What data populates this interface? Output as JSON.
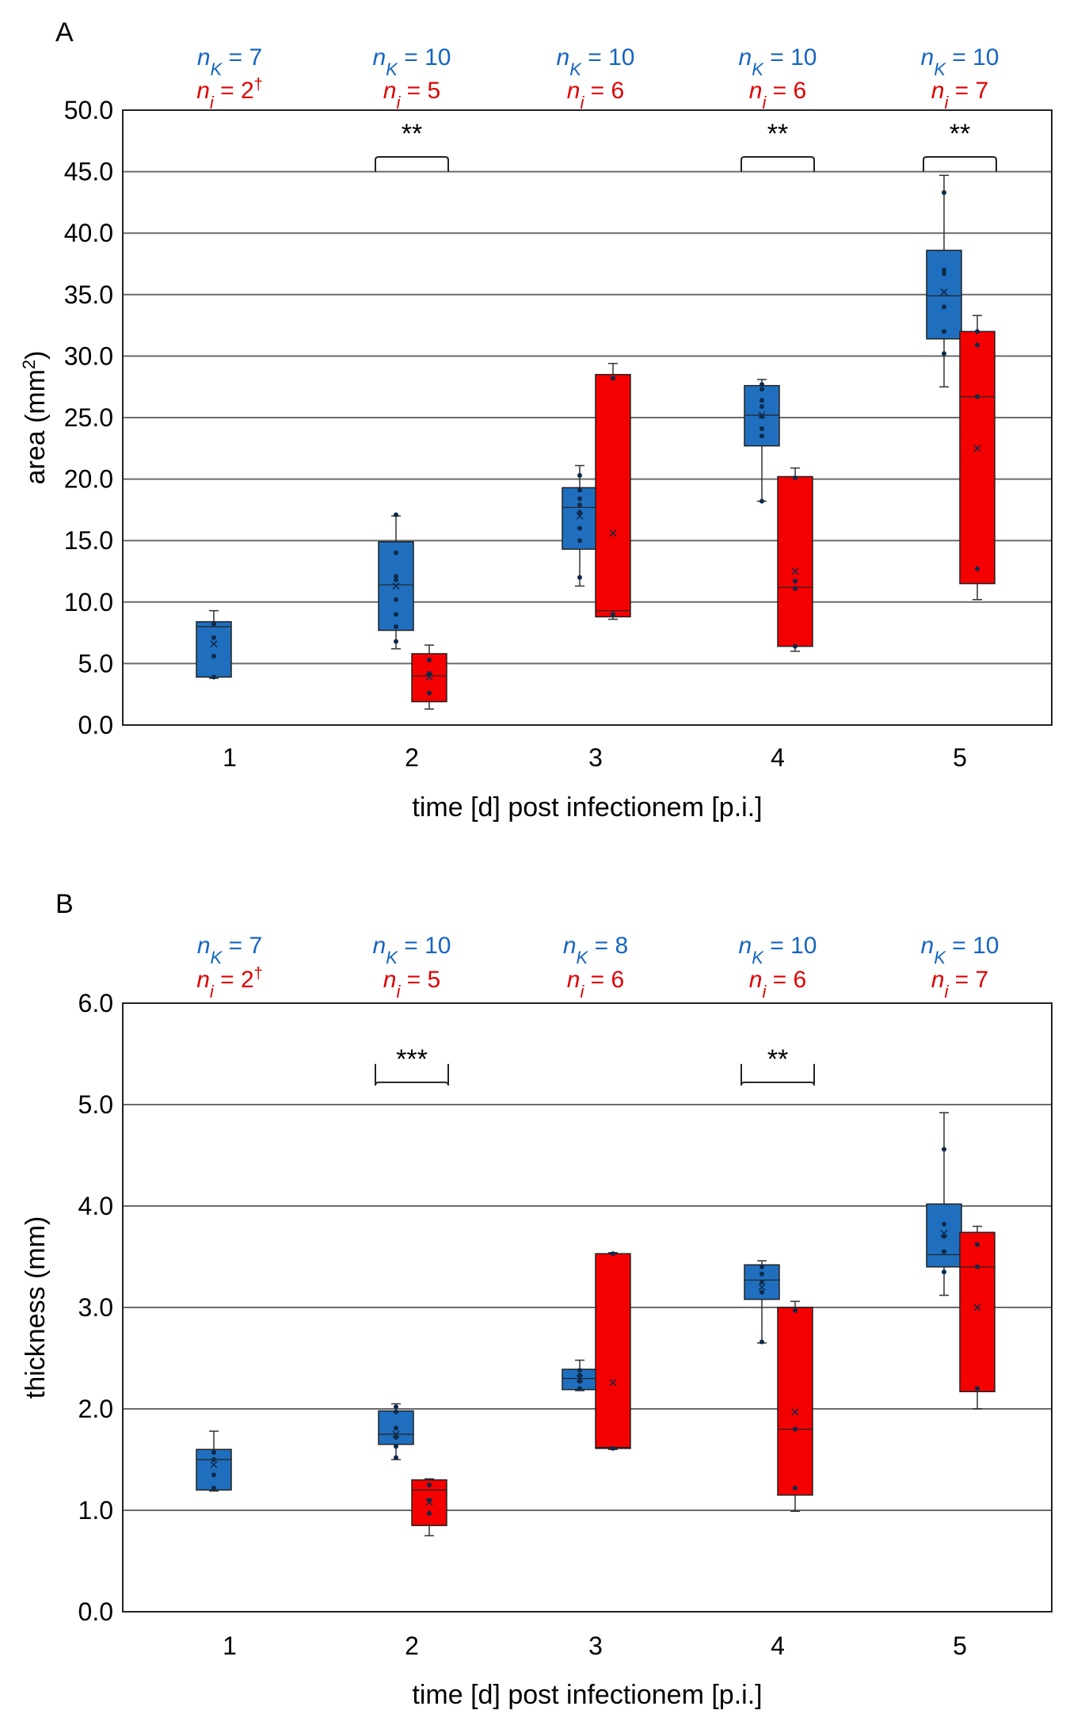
{
  "chart_data": [
    {
      "panel": "A",
      "type": "box",
      "ylabel_main": "area (mm",
      "ylabel_sup": "2",
      "ylabel_end": ")",
      "xlabel": "time [d] post infectionem [p.i.]",
      "ylim": [
        0,
        50
      ],
      "yticks": [
        0,
        5,
        10,
        15,
        20,
        25,
        30,
        35,
        40,
        45,
        50
      ],
      "ytick_labels": [
        "0.0",
        "5.0",
        "10.0",
        "15.0",
        "20.0",
        "25.0",
        "30.0",
        "35.0",
        "40.0",
        "45.0",
        "50.0"
      ],
      "categories": [
        "1",
        "2",
        "3",
        "4",
        "5"
      ],
      "nK": [
        "7",
        "10",
        "10",
        "10",
        "10"
      ],
      "ni": [
        "2",
        "5",
        "6",
        "6",
        "7"
      ],
      "ni_dagger": [
        "†",
        "",
        "",
        "",
        ""
      ],
      "significance": [
        "",
        "**",
        "",
        "**",
        "**"
      ],
      "bracket_level": 46.2,
      "series": [
        {
          "name": "K",
          "color": "#1f6fbe",
          "boxes": [
            {
              "min": 3.8,
              "q1": 3.9,
              "median": 8.0,
              "q3": 8.4,
              "max": 9.3,
              "mean": 6.6,
              "points": [
                3.9,
                5.6,
                7.1,
                8.2
              ]
            },
            {
              "min": 6.2,
              "q1": 7.7,
              "median": 11.4,
              "q3": 14.9,
              "max": 17.0,
              "mean": 11.3,
              "points": [
                6.8,
                8.0,
                9.0,
                10.2,
                11.8,
                12.1,
                14.0,
                17.1
              ]
            },
            {
              "min": 11.3,
              "q1": 14.3,
              "median": 17.7,
              "q3": 19.3,
              "max": 21.1,
              "mean": 17.0,
              "points": [
                12.0,
                15.0,
                16.0,
                17.3,
                17.9,
                18.4,
                19.1,
                20.3
              ]
            },
            {
              "min": 18.2,
              "q1": 22.7,
              "median": 25.2,
              "q3": 27.6,
              "max": 28.1,
              "mean": 25.2,
              "points": [
                18.2,
                23.5,
                24.1,
                25.1,
                25.9,
                26.4,
                27.3,
                27.7
              ]
            },
            {
              "min": 27.5,
              "q1": 31.4,
              "median": 34.9,
              "q3": 38.6,
              "max": 44.7,
              "mean": 35.2,
              "points": [
                30.2,
                32.0,
                34.0,
                36.7,
                37.0,
                43.3
              ]
            }
          ]
        },
        {
          "name": "i",
          "color": "#f50000",
          "boxes": [
            null,
            {
              "min": 1.3,
              "q1": 1.9,
              "median": 4.0,
              "q3": 5.8,
              "max": 6.5,
              "mean": 3.9,
              "points": [
                2.6,
                4.2,
                5.3
              ]
            },
            {
              "min": 8.6,
              "q1": 8.8,
              "median": 9.3,
              "q3": 28.5,
              "max": 29.4,
              "mean": 15.6,
              "points": [
                9.0,
                28.2
              ]
            },
            {
              "min": 6.0,
              "q1": 6.4,
              "median": 11.2,
              "q3": 20.2,
              "max": 20.9,
              "mean": 12.5,
              "points": [
                6.4,
                11.1,
                11.7,
                20.1
              ]
            },
            {
              "min": 10.2,
              "q1": 11.5,
              "median": 26.7,
              "q3": 32.0,
              "max": 33.3,
              "mean": 22.5,
              "points": [
                12.7,
                26.7,
                30.9,
                32.0
              ]
            }
          ]
        }
      ]
    },
    {
      "panel": "B",
      "type": "box",
      "ylabel_main": "thickness (mm)",
      "ylabel_sup": "",
      "ylabel_end": "",
      "xlabel": "time [d] post infectionem [p.i.]",
      "ylim": [
        0,
        6
      ],
      "yticks": [
        0,
        1,
        2,
        3,
        4,
        5,
        6
      ],
      "ytick_labels": [
        "0.0",
        "1.0",
        "2.0",
        "3.0",
        "4.0",
        "5.0",
        "6.0"
      ],
      "categories": [
        "1",
        "2",
        "3",
        "4",
        "5"
      ],
      "nK": [
        "7",
        "10",
        "8",
        "10",
        "10"
      ],
      "ni": [
        "2",
        "5",
        "6",
        "6",
        "7"
      ],
      "ni_dagger": [
        "†",
        "",
        "",
        "",
        ""
      ],
      "significance": [
        "",
        "***",
        "",
        "**",
        ""
      ],
      "bracket_level": 5.22,
      "series": [
        {
          "name": "K",
          "color": "#1f6fbe",
          "boxes": [
            {
              "min": 1.19,
              "q1": 1.2,
              "median": 1.5,
              "q3": 1.6,
              "max": 1.78,
              "mean": 1.45,
              "points": [
                1.22,
                1.35,
                1.5,
                1.57
              ]
            },
            {
              "min": 1.5,
              "q1": 1.65,
              "median": 1.75,
              "q3": 1.98,
              "max": 2.05,
              "mean": 1.75,
              "points": [
                1.52,
                1.63,
                1.72,
                1.81,
                1.97,
                2.02
              ]
            },
            {
              "min": 2.18,
              "q1": 2.19,
              "median": 2.3,
              "q3": 2.39,
              "max": 2.48,
              "mean": 2.3,
              "points": [
                2.2,
                2.27,
                2.33,
                2.38
              ]
            },
            {
              "min": 2.65,
              "q1": 3.08,
              "median": 3.27,
              "q3": 3.42,
              "max": 3.46,
              "mean": 3.2,
              "points": [
                2.66,
                3.15,
                3.25,
                3.33,
                3.4
              ]
            },
            {
              "min": 3.12,
              "q1": 3.4,
              "median": 3.52,
              "q3": 4.02,
              "max": 4.92,
              "mean": 3.73,
              "points": [
                3.35,
                3.55,
                3.7,
                3.82,
                4.56
              ]
            }
          ]
        },
        {
          "name": "i",
          "color": "#f50000",
          "boxes": [
            null,
            {
              "min": 0.75,
              "q1": 0.85,
              "median": 1.2,
              "q3": 1.3,
              "max": 1.31,
              "mean": 1.08,
              "points": [
                0.97,
                1.1,
                1.25
              ]
            },
            {
              "min": 1.6,
              "q1": 1.61,
              "median": 1.62,
              "q3": 3.53,
              "max": 3.54,
              "mean": 2.26,
              "points": [
                1.61,
                3.53
              ]
            },
            {
              "min": 0.99,
              "q1": 1.15,
              "median": 1.8,
              "q3": 3.0,
              "max": 3.06,
              "mean": 1.97,
              "points": [
                1.22,
                1.8,
                2.97
              ]
            },
            {
              "min": 2.0,
              "q1": 2.17,
              "median": 3.4,
              "q3": 3.74,
              "max": 3.8,
              "mean": 3.0,
              "points": [
                2.2,
                3.4,
                3.62
              ]
            }
          ]
        }
      ]
    }
  ]
}
